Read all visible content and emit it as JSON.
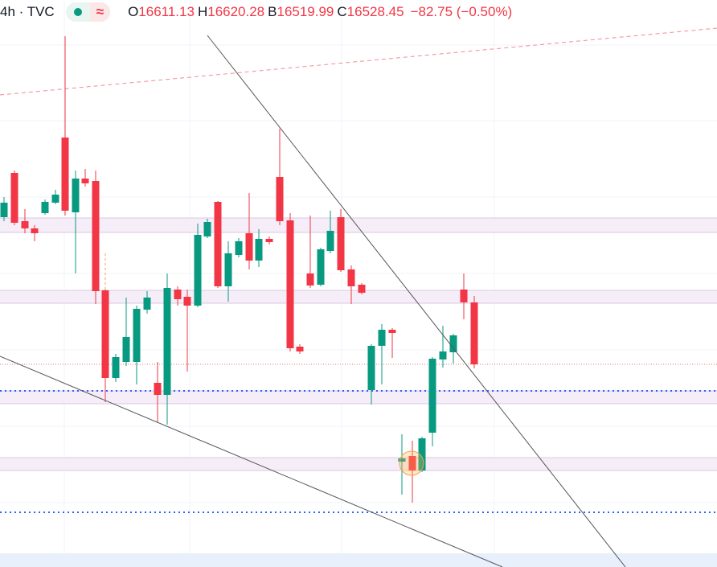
{
  "header": {
    "symbol": "4h · TVC",
    "icon": "≈",
    "ohlc": [
      {
        "label": "O",
        "value": "16611.13"
      },
      {
        "label": "H",
        "value": "16620.28"
      },
      {
        "label": "B",
        "value": "16519.99"
      },
      {
        "label": "C",
        "value": "16528.45"
      }
    ],
    "change": "−82.75 (−0.50%)"
  }
}
